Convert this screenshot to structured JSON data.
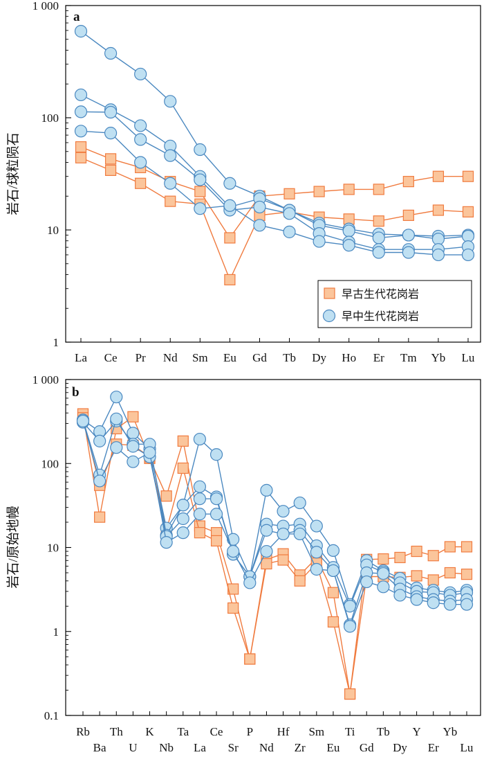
{
  "colors": {
    "early_paleozoic": "#f07b3f",
    "early_paleozoic_fill": "#fbc59b",
    "early_mesozoic": "#4a88c0",
    "early_mesozoic_fill": "#bfe0f2",
    "axis": "#000000"
  },
  "chart_data": [
    {
      "type": "line",
      "panel_label": "a",
      "ylabel": "岩石/球粒陨石",
      "yscale": "log",
      "ylim": [
        1,
        1000
      ],
      "yticks": [
        "1",
        "10",
        "100",
        "1 000"
      ],
      "categories": [
        "La",
        "Ce",
        "Pr",
        "Nd",
        "Sm",
        "Eu",
        "Gd",
        "Tb",
        "Dy",
        "Ho",
        "Er",
        "Tm",
        "Yb",
        "Lu"
      ],
      "legend": [
        {
          "label": "早古生代花岗岩",
          "marker": "square",
          "group": "early_paleozoic"
        },
        {
          "label": "早中生代花岗岩",
          "marker": "circle",
          "group": "early_mesozoic"
        }
      ],
      "series": [
        {
          "group": "early_paleozoic",
          "values": [
            55,
            43,
            36,
            27,
            22,
            8.5,
            20,
            21,
            22,
            23,
            23,
            27,
            30,
            30
          ]
        },
        {
          "group": "early_paleozoic",
          "values": [
            44,
            34,
            26,
            18,
            17,
            3.6,
            13.5,
            14.5,
            13,
            12.5,
            12,
            13.5,
            15,
            14.5
          ]
        },
        {
          "group": "early_mesozoic",
          "values": [
            590,
            375,
            245,
            140,
            52,
            26,
            20,
            15,
            11.5,
            10.2,
            9.2,
            9.0,
            8.8,
            9.0
          ]
        },
        {
          "group": "early_mesozoic",
          "values": [
            160,
            118,
            85,
            56,
            30,
            16,
            19,
            15,
            11,
            9.8,
            8.5,
            9.0,
            8.3,
            8.8
          ]
        },
        {
          "group": "early_mesozoic",
          "values": [
            113,
            112,
            64,
            46,
            28,
            15,
            16,
            14,
            9.3,
            7.8,
            6.7,
            6.7,
            6.7,
            7.1
          ]
        },
        {
          "group": "early_mesozoic",
          "values": [
            76,
            73,
            40,
            26,
            15.5,
            16.5,
            11,
            9.6,
            7.9,
            7.3,
            6.3,
            6.3,
            6.0,
            6.0
          ]
        }
      ]
    },
    {
      "type": "line",
      "panel_label": "b",
      "ylabel": "岩石/原始地幔",
      "yscale": "log",
      "ylim": [
        0.1,
        1000
      ],
      "yticks": [
        "0.1",
        "1",
        "10",
        "100",
        "1 000"
      ],
      "categories": [
        "Rb",
        "Ba",
        "Th",
        "U",
        "K",
        "Nb",
        "Ta",
        "La",
        "Ce",
        "Sr",
        "P",
        "Nd",
        "Hf",
        "Zr",
        "Sm",
        "Eu",
        "Ti",
        "Gd",
        "Tb",
        "Dy",
        "Y",
        "Er",
        "Yb",
        "Lu"
      ],
      "series": [
        {
          "group": "early_paleozoic",
          "values": [
            390,
            23,
            260,
            360,
            115,
            41,
            185,
            18,
            15,
            3.2,
            0.47,
            7.2,
            8.4,
            4.7,
            7.5,
            2.9,
            0.18,
            7.2,
            7.3,
            7.6,
            9.0,
            8.0,
            10.2,
            10.2
          ]
        },
        {
          "group": "early_paleozoic",
          "values": [
            350,
            55,
            170,
            165,
            120,
            16,
            88,
            15,
            12,
            1.9,
            0.47,
            6.4,
            7.1,
            4.0,
            6.5,
            1.3,
            0.18,
            4.5,
            4.5,
            4.4,
            4.6,
            4.1,
            5.0,
            4.8
          ]
        },
        {
          "group": "early_mesozoic",
          "values": [
            330,
            240,
            620,
            230,
            150,
            17,
            32,
            195,
            128,
            12.5,
            4.5,
            48,
            27,
            34,
            18,
            9.2,
            2.1,
            7.0,
            5.3,
            4.3,
            3.3,
            3.1,
            2.9,
            3.1
          ]
        },
        {
          "group": "early_mesozoic",
          "values": [
            310,
            185,
            320,
            170,
            170,
            14,
            32,
            53,
            40,
            8.3,
            4.5,
            19,
            18,
            19,
            10.5,
            5.8,
            2.0,
            6.2,
            5.1,
            3.8,
            3.0,
            2.9,
            2.7,
            2.9
          ]
        },
        {
          "group": "early_mesozoic",
          "values": [
            330,
            73,
            340,
            160,
            120,
            13.5,
            22,
            38,
            38,
            8.3,
            4.5,
            16,
            14.5,
            16,
            8.8,
            5.3,
            1.2,
            5.0,
            4.9,
            3.2,
            2.6,
            2.4,
            2.3,
            2.4
          ]
        },
        {
          "group": "early_mesozoic",
          "values": [
            320,
            62,
            155,
            105,
            135,
            11.5,
            15,
            25,
            25,
            9.0,
            3.8,
            9.0,
            14.5,
            14.5,
            5.5,
            5.3,
            1.15,
            3.9,
            3.4,
            2.7,
            2.4,
            2.2,
            2.1,
            2.1
          ]
        }
      ]
    }
  ]
}
